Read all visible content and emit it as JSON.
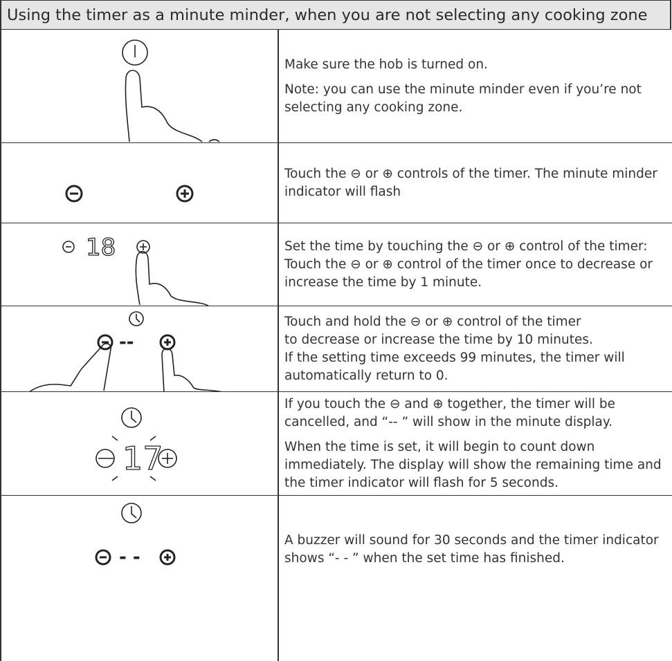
{
  "header": {
    "title": "Using the timer as a minute minder, when you are not selecting any cooking zone"
  },
  "steps": [
    {
      "paragraphs": [
        "Make sure the hob is turned on.",
        "Note: you can use the minute minder even if you’re not selecting any cooking zone."
      ]
    },
    {
      "paragraphs": [
        "Touch the ⊖ or ⊕ controls of the timer. The minute minder indicator will flash"
      ]
    },
    {
      "display": "18",
      "paragraphs": [
        "Set the time by touching the ⊖ or ⊕ control of the timer: Touch the ⊖ or ⊕ control of the timer once to decrease or increase the time by 1 minute."
      ]
    },
    {
      "display": "--",
      "paragraphs": [
        "Touch and hold the ⊖ or ⊕ control of the timer",
        "to decrease or increase the time by 10 minutes.",
        "If the setting time exceeds 99 minutes, the timer will automatically return to 0."
      ]
    },
    {
      "display": "17",
      "paragraphs": [
        "If you touch the ⊖ and ⊕ together, the timer will be cancelled, and “-- ” will show in the minute display.",
        "When the time is set, it will begin to count down immediately. The display will show the remaining time and the timer indicator will flash for 5 seconds."
      ]
    },
    {
      "display": "- -",
      "paragraphs": [
        "A buzzer will sound for 30 seconds and the timer indicator shows “- - ” when the set time has finished."
      ]
    }
  ]
}
